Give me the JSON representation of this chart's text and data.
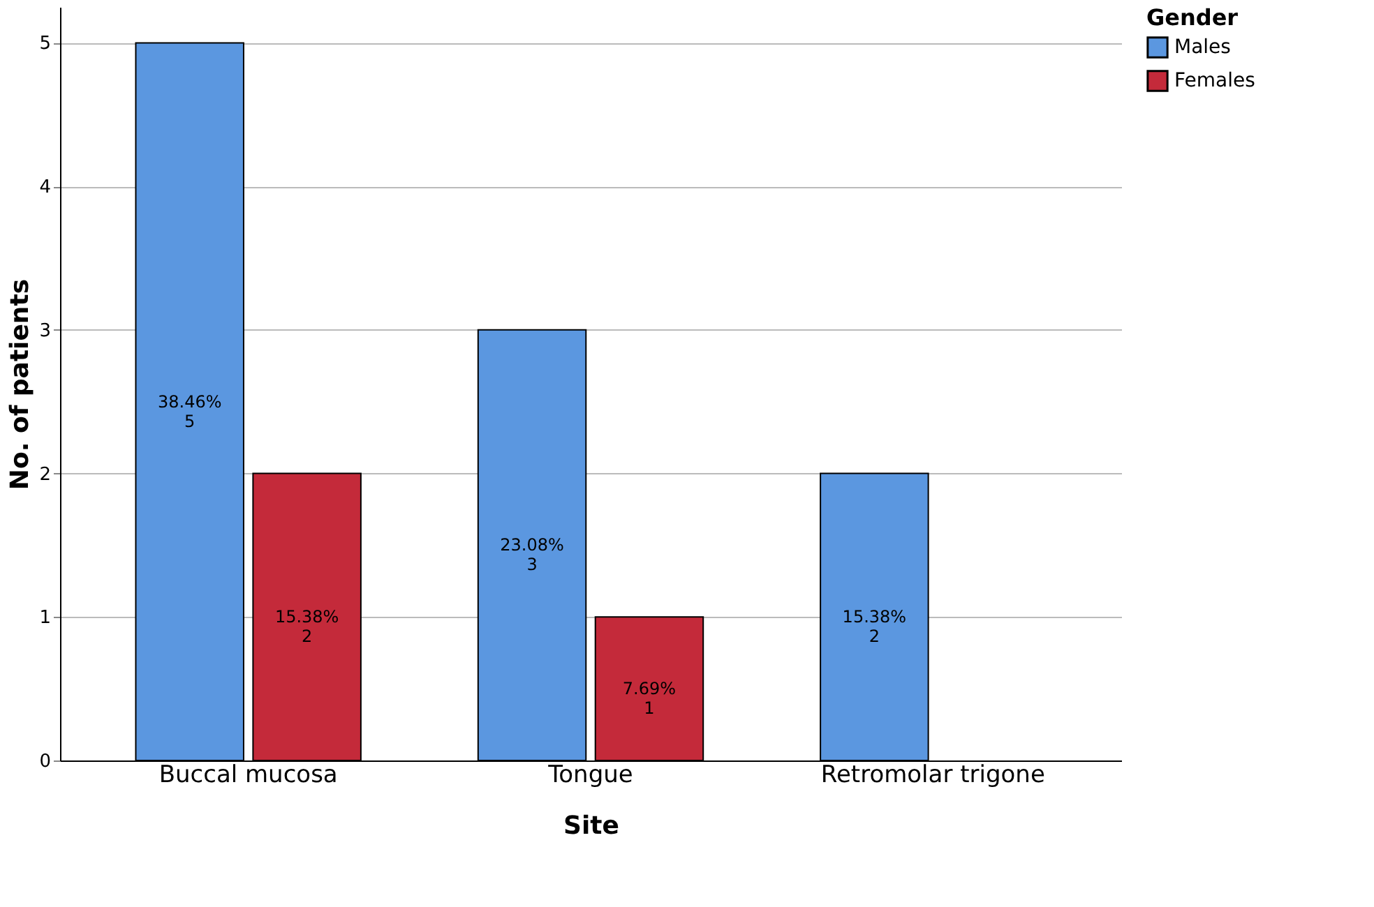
{
  "chart_data": {
    "type": "bar",
    "xlabel": "Site",
    "ylabel": "No. of patients",
    "legend_title": "Gender",
    "categories": [
      "Buccal mucosa",
      "Tongue",
      "Retromolar trigone"
    ],
    "series": [
      {
        "name": "Males",
        "color": "#5b97e0",
        "values": [
          5,
          3,
          2
        ],
        "value_labels": [
          "38.46%\n5",
          "23.08%\n3",
          "15.38%\n2"
        ]
      },
      {
        "name": "Females",
        "color": "#c42a3a",
        "values": [
          2,
          1,
          null
        ],
        "value_labels": [
          "15.38%\n2",
          "7.69%\n1",
          null
        ]
      }
    ],
    "ylim": [
      0,
      5.25
    ],
    "yticks": [
      0,
      1,
      2,
      3,
      4,
      5
    ],
    "grid": "y",
    "legend": "top right"
  }
}
